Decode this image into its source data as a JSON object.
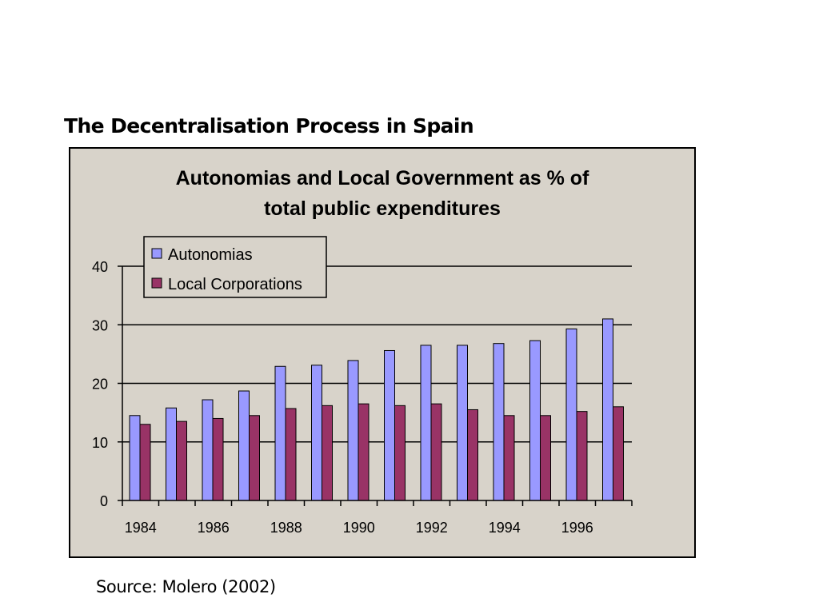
{
  "slide": {
    "title": "The Decentralisation Process in Spain",
    "source": "Source: Molero (2002)"
  },
  "colors": {
    "chart_background": "#d8d3ca",
    "autonomias": "#9999ff",
    "local_corporations": "#993366"
  },
  "chart_data": {
    "type": "bar",
    "title_lines": [
      "Autonomias and Local Government as % of",
      "total public expenditures"
    ],
    "xlabel": "",
    "ylabel": "",
    "x": [
      1984,
      1985,
      1986,
      1987,
      1988,
      1989,
      1990,
      1991,
      1992,
      1993,
      1994,
      1995,
      1996,
      1997
    ],
    "x_tick_labels": [
      "1984",
      "1986",
      "1988",
      "1990",
      "1992",
      "1994",
      "1996"
    ],
    "ylim": [
      0,
      40
    ],
    "y_ticks": [
      0,
      10,
      20,
      30,
      40
    ],
    "grid": true,
    "legend_position": "top-left",
    "series": [
      {
        "name": "Autonomias",
        "values": [
          14.5,
          15.8,
          17.2,
          18.7,
          22.9,
          23.1,
          23.9,
          25.6,
          26.5,
          26.5,
          26.8,
          27.3,
          29.3,
          31.0
        ]
      },
      {
        "name": "Local Corporations",
        "values": [
          13.0,
          13.5,
          14.0,
          14.5,
          15.7,
          16.2,
          16.5,
          16.2,
          16.5,
          15.5,
          14.5,
          14.5,
          15.2,
          16.0
        ]
      }
    ]
  }
}
